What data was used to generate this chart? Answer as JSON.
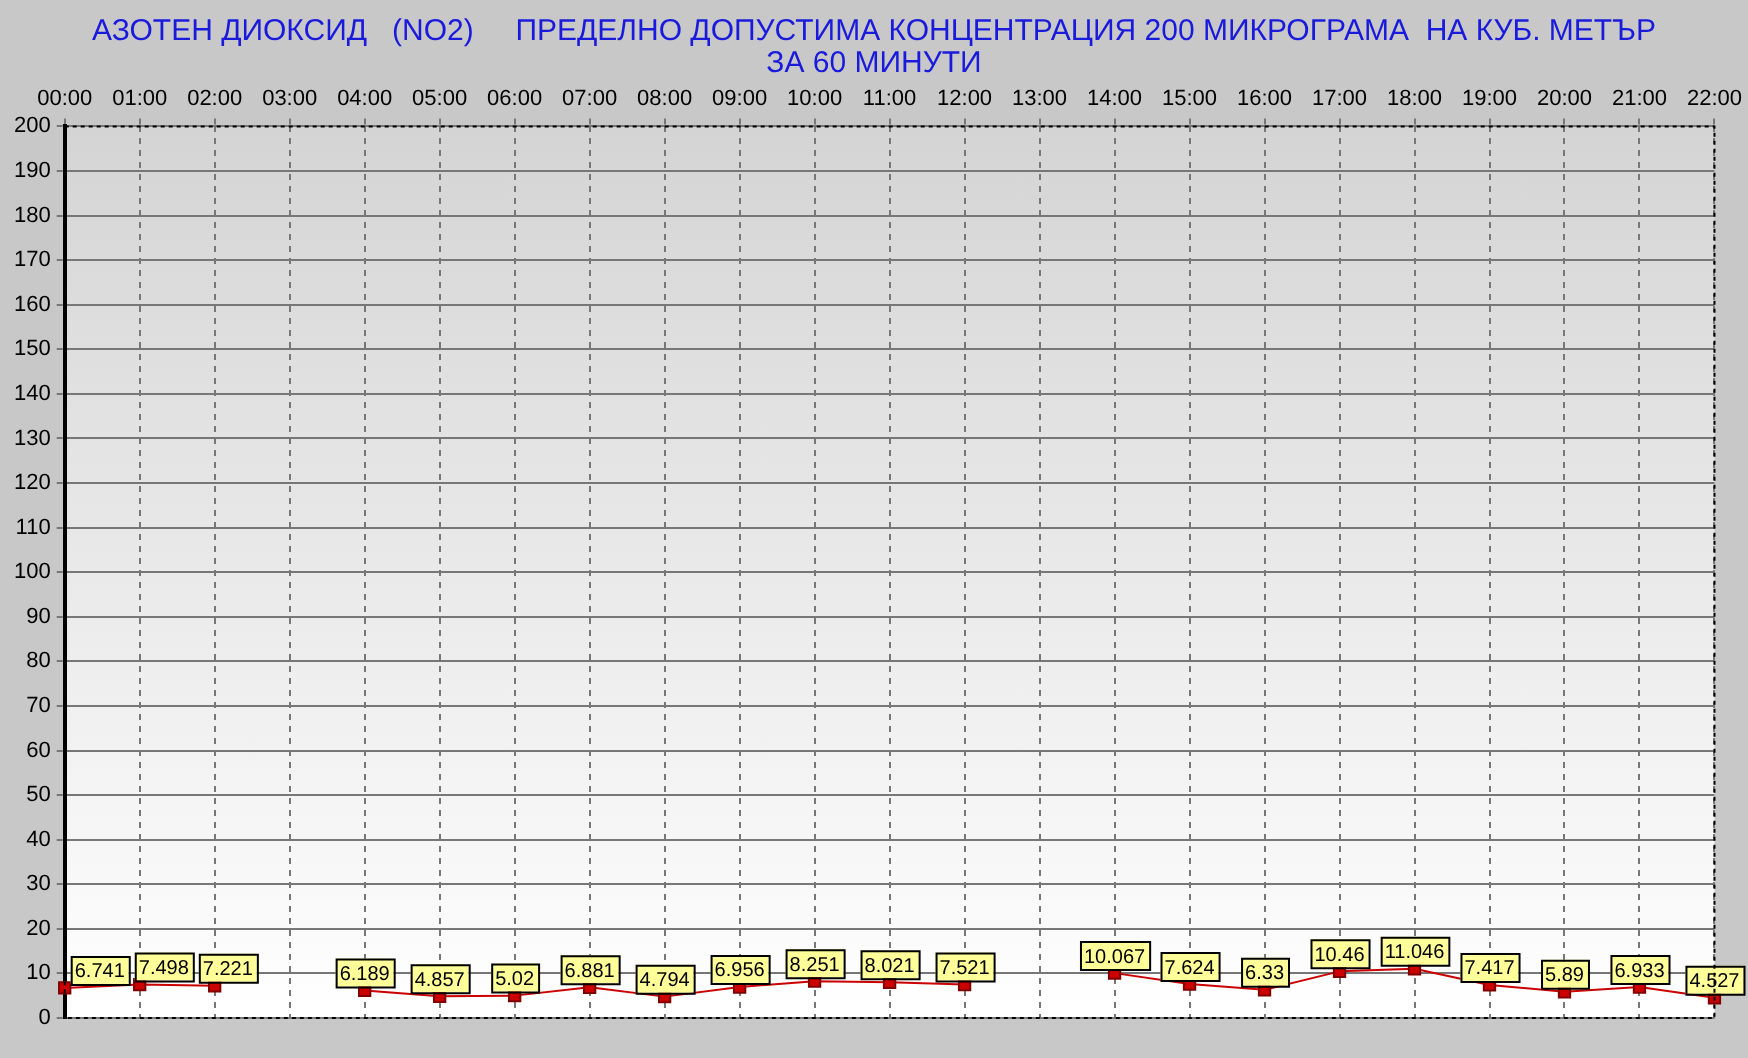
{
  "chart_data": {
    "type": "line",
    "title": "АЗОТЕН ДИОКСИД   (NO2)     ПРЕДЕЛНО ДОПУСТИМА КОНЦЕНТРАЦИЯ 200 МИКРОГРАМА  НА КУБ. МЕТЪР",
    "subtitle": "ЗА 60 МИНУТИ",
    "categories": [
      "00:00",
      "01:00",
      "02:00",
      "03:00",
      "04:00",
      "05:00",
      "06:00",
      "07:00",
      "08:00",
      "09:00",
      "10:00",
      "11:00",
      "12:00",
      "13:00",
      "14:00",
      "15:00",
      "16:00",
      "17:00",
      "18:00",
      "19:00",
      "20:00",
      "21:00",
      "22:00"
    ],
    "series": [
      {
        "color": "#cc0000",
        "values": [
          6.741,
          7.498,
          7.221,
          null,
          6.189,
          4.857,
          5.02,
          6.881,
          4.794,
          6.956,
          8.251,
          8.021,
          7.521,
          null,
          10.067,
          7.624,
          6.33,
          10.46,
          11.046,
          7.417,
          5.89,
          6.933,
          4.527
        ]
      }
    ],
    "ylim": [
      0,
      200
    ],
    "yticks": [
      0,
      10,
      20,
      30,
      40,
      50,
      60,
      70,
      80,
      90,
      100,
      110,
      120,
      130,
      140,
      150,
      160,
      170,
      180,
      190,
      200
    ],
    "grid": true,
    "legend": false,
    "marker": "square",
    "line_style": "solid",
    "data_labels": true
  }
}
